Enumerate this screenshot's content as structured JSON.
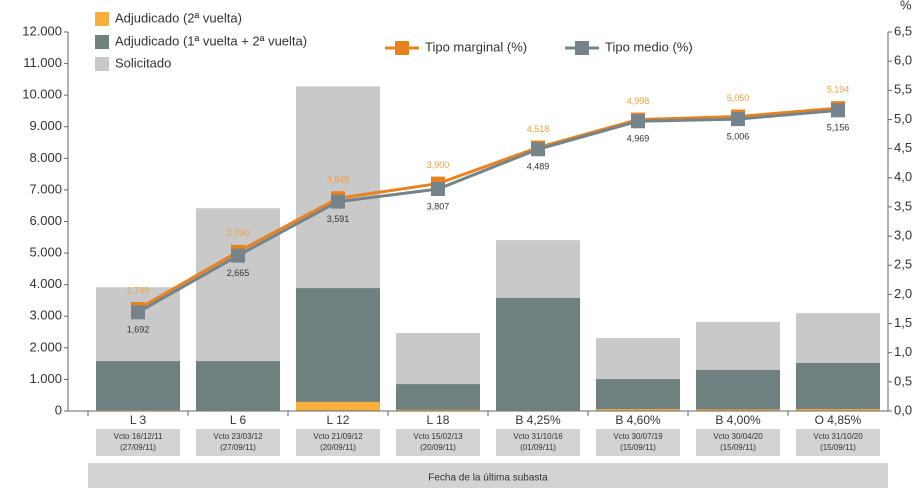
{
  "chart_data": {
    "type": "combo",
    "y2_unit": "%",
    "x_title": "Fecha de la última subasta",
    "categories": [
      "L 3",
      "L 6",
      "L 12",
      "L 18",
      "B 4,25%",
      "B 4,60%",
      "B 4,00%",
      "O 4,85%"
    ],
    "sublabels": [
      [
        "Vcto 16/12/11",
        "(27/09/11)"
      ],
      [
        "Vcto 23/03/12",
        "(27/09/11)"
      ],
      [
        "Vcto 21/09/12",
        "(20/09/11)"
      ],
      [
        "Vcto 15/02/13",
        "(20/09/11)"
      ],
      [
        "Vcto 31/10/16",
        "(01/09/11)"
      ],
      [
        "Vcto 30/07/19",
        "(15/09/11)"
      ],
      [
        "Vcto 30/04/20",
        "(15/09/11)"
      ],
      [
        "Vcto 31/10/20",
        "(15/09/11)"
      ]
    ],
    "ylim": [
      0,
      12000
    ],
    "yticks": [
      {
        "value": 0,
        "label": "0"
      },
      {
        "value": 1000,
        "label": "1.000"
      },
      {
        "value": 2000,
        "label": "2.000"
      },
      {
        "value": 3000,
        "label": "3.000"
      },
      {
        "value": 4000,
        "label": "4.000"
      },
      {
        "value": 5000,
        "label": "5.000"
      },
      {
        "value": 6000,
        "label": "6.000"
      },
      {
        "value": 7000,
        "label": "7.000"
      },
      {
        "value": 8000,
        "label": "8.000"
      },
      {
        "value": 9000,
        "label": "9.000"
      },
      {
        "value": 10000,
        "label": "10.000"
      },
      {
        "value": 11000,
        "label": "11.000"
      },
      {
        "value": 12000,
        "label": "12.000"
      }
    ],
    "y2lim": [
      0,
      6.5
    ],
    "y2ticks": [
      {
        "value": 0,
        "label": "0,0"
      },
      {
        "value": 0.5,
        "label": "0,5"
      },
      {
        "value": 1,
        "label": "1,0"
      },
      {
        "value": 1.5,
        "label": "1,5"
      },
      {
        "value": 2,
        "label": "2,0"
      },
      {
        "value": 2.5,
        "label": "2,5"
      },
      {
        "value": 3,
        "label": "3,0"
      },
      {
        "value": 3.5,
        "label": "3,5"
      },
      {
        "value": 4,
        "label": "4,0"
      },
      {
        "value": 4.5,
        "label": "4,5"
      },
      {
        "value": 5,
        "label": "5,0"
      },
      {
        "value": 5.5,
        "label": "5,5"
      },
      {
        "value": 6,
        "label": "6,0"
      },
      {
        "value": 6.5,
        "label": "6,5"
      }
    ],
    "series": [
      {
        "name": "Adjudicado (2ª vuelta)",
        "type": "bar",
        "color": "#f7b03c",
        "values": [
          30,
          20,
          290,
          40,
          20,
          60,
          50,
          60
        ]
      },
      {
        "name": "Adjudicado (1ª vuelta + 2ª vuelta)",
        "type": "bar",
        "color": "#6e807f",
        "values": [
          1580,
          1580,
          3890,
          850,
          3580,
          1010,
          1300,
          1520
        ]
      },
      {
        "name": "Solicitado",
        "type": "bar",
        "color": "#c9c9c9",
        "values": [
          3920,
          6420,
          10280,
          2470,
          5410,
          2310,
          2820,
          3100
        ]
      },
      {
        "name": "Tipo marginal (%)",
        "type": "line",
        "axis": "y2",
        "color": "#e8821e",
        "label_color": "#f0a040",
        "values": [
          1.749,
          2.73,
          3.648,
          3.9,
          4.518,
          4.998,
          5.05,
          5.194
        ],
        "value_labels": [
          "1,749",
          "2,730",
          "3,648",
          "3,900",
          "4,518",
          "4,998",
          "5,050",
          "5,194"
        ]
      },
      {
        "name": "Tipo medio (%)",
        "type": "line",
        "axis": "y2",
        "color": "#74848a",
        "label_color": "#333333",
        "values": [
          1.692,
          2.665,
          3.591,
          3.807,
          4.489,
          4.969,
          5.006,
          5.156
        ],
        "value_labels": [
          "1,692",
          "2,665",
          "3,591",
          "3,807",
          "4,489",
          "4,969",
          "5,006",
          "5,156"
        ]
      }
    ]
  }
}
